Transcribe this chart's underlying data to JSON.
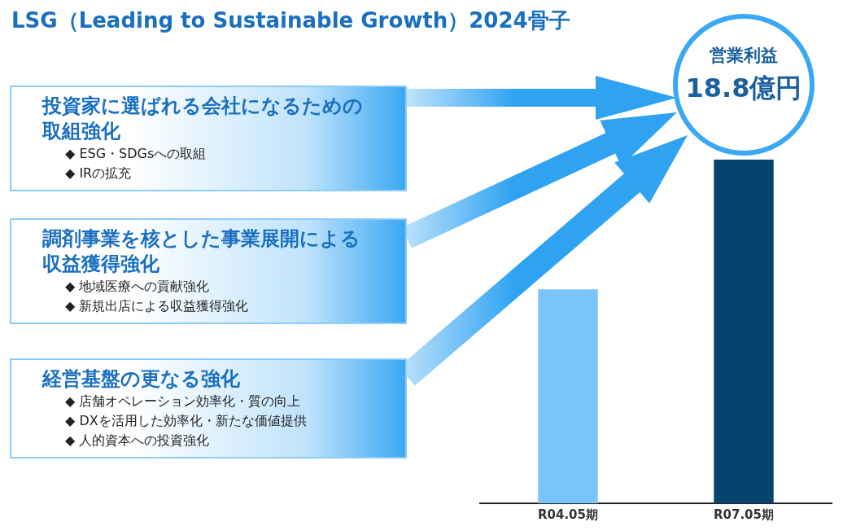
{
  "chart_data": {
    "type": "bar",
    "title": "LSG（Leading to Sustainable Growth）2024骨子",
    "categories": [
      "R04.05期",
      "R07.05期"
    ],
    "values": [
      11.7,
      18.8
    ],
    "tick_labels": "x",
    "colors": [
      "#79c4fa",
      "#05446f"
    ],
    "value_labels": [
      null,
      "18.8億円"
    ],
    "grid": false,
    "legend": false,
    "annotations": [
      "営業利益",
      "投資家に選ばれる会社になるための取組強化",
      "◆ ESG・SDGsへの取組",
      "◆ IRの拡充",
      "調剤事業を核とした事業展開による収益獲得強化",
      "◆ 地域医療への貢献強化",
      "◆ 新規出店による収益獲得強化",
      "経営基盤の更なる強化",
      "◆ 店舗オペレーション効率化・質の向上",
      "◆ DXを活用した効率化・新たな価値提供",
      "◆ 人的資本への投資強化"
    ]
  }
}
